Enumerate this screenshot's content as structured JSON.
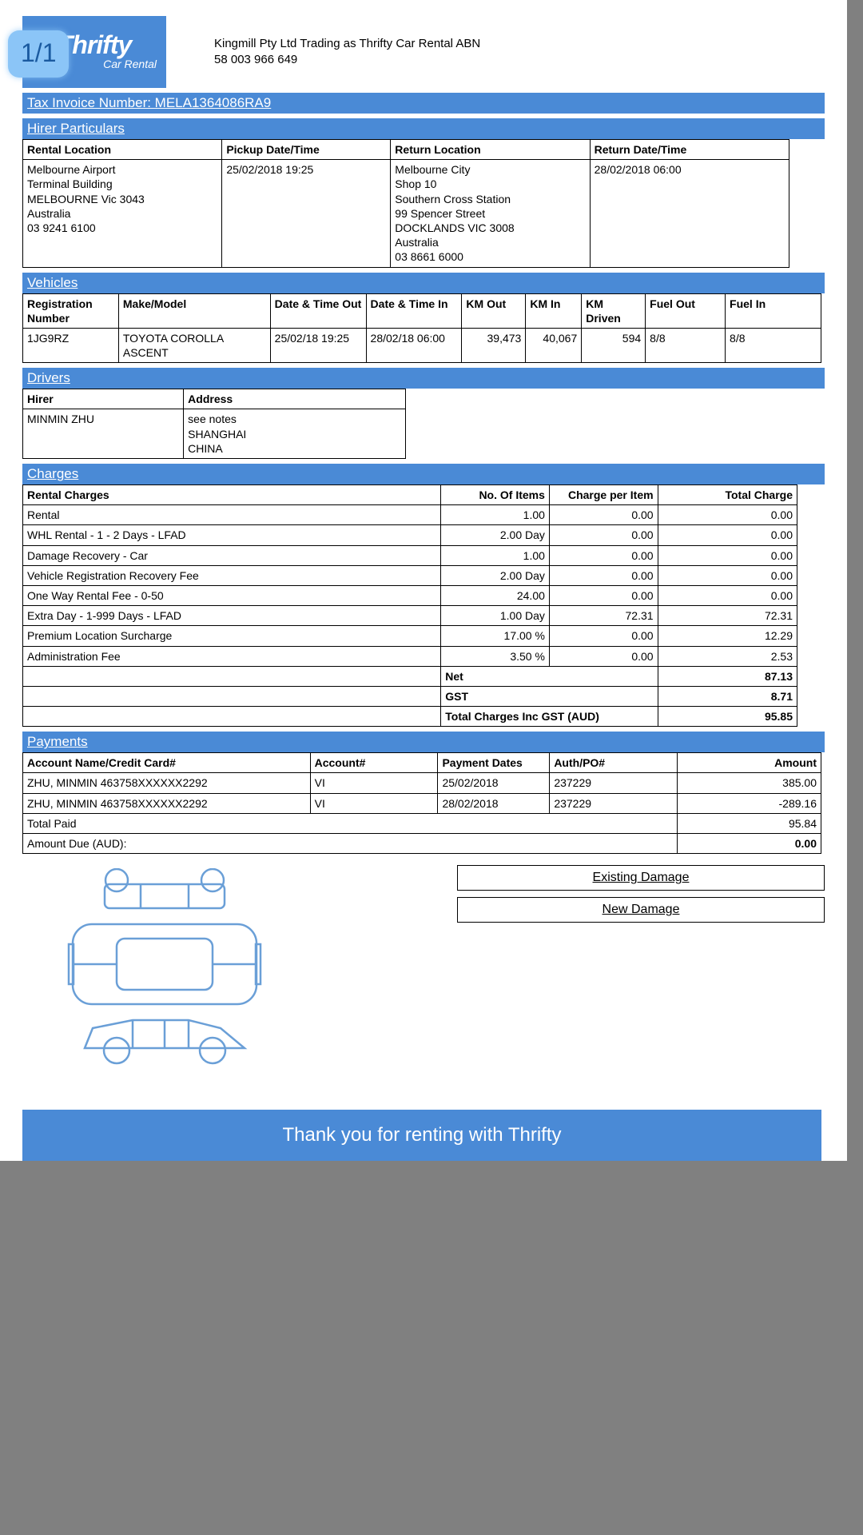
{
  "page_indicator": "1/1",
  "logo": {
    "name": "Thrifty",
    "sub": "Car Rental"
  },
  "company": {
    "line1": "Kingmill Pty Ltd Trading as Thrifty Car Rental ABN",
    "line2": "58 003 966 649"
  },
  "invoice_bar": "Tax Invoice Number:  MELA1364086RA9",
  "sections": {
    "hirer": "Hirer Particulars",
    "vehicles": "Vehicles",
    "drivers": "Drivers",
    "charges": "Charges",
    "payments": "Payments"
  },
  "hirer": {
    "headers": [
      "Rental Location",
      "Pickup Date/Time",
      "Return Location",
      "Return Date/Time"
    ],
    "rental_location": "Melbourne Airport\nTerminal Building\nMELBOURNE Vic 3043\nAustralia\n03 9241 6100",
    "pickup": "25/02/2018 19:25",
    "return_location": "Melbourne City\nShop 10\nSouthern Cross Station\n99 Spencer Street\nDOCKLANDS VIC 3008\nAustralia\n03 8661 6000",
    "return_dt": "28/02/2018 06:00"
  },
  "vehicles": {
    "headers": [
      "Registration Number",
      "Make/Model",
      "Date & Time Out",
      "Date & Time In",
      "KM Out",
      "KM In",
      "KM Driven",
      "Fuel Out",
      "Fuel In"
    ],
    "row": {
      "reg": "1JG9RZ",
      "model": "TOYOTA COROLLA ASCENT",
      "dt_out": "25/02/18 19:25",
      "dt_in": "28/02/18 06:00",
      "km_out": "39,473",
      "km_in": "40,067",
      "km_driven": "594",
      "fuel_out": "8/8",
      "fuel_in": "8/8"
    }
  },
  "drivers": {
    "headers": [
      "Hirer",
      "Address"
    ],
    "row": {
      "hirer": "MINMIN ZHU",
      "address": "see notes\nSHANGHAI\nCHINA"
    }
  },
  "charges": {
    "headers": [
      "Rental Charges",
      "No. Of Items",
      "Charge per Item",
      "Total Charge"
    ],
    "rows": [
      {
        "desc": "Rental",
        "items": "1.00",
        "per": "0.00",
        "total": "0.00"
      },
      {
        "desc": "WHL Rental - 1 - 2 Days - LFAD",
        "items": "2.00 Day",
        "per": "0.00",
        "total": "0.00"
      },
      {
        "desc": "Damage Recovery - Car",
        "items": "1.00",
        "per": "0.00",
        "total": "0.00"
      },
      {
        "desc": "Vehicle Registration Recovery Fee",
        "items": "2.00 Day",
        "per": "0.00",
        "total": "0.00"
      },
      {
        "desc": "One Way Rental Fee - 0-50",
        "items": "24.00",
        "per": "0.00",
        "total": "0.00"
      },
      {
        "desc": "Extra Day - 1-999 Days - LFAD",
        "items": "1.00 Day",
        "per": "72.31",
        "total": "72.31"
      },
      {
        "desc": "Premium Location Surcharge",
        "items": "17.00 %",
        "per": "0.00",
        "total": "12.29"
      },
      {
        "desc": "Administration Fee",
        "items": "3.50 %",
        "per": "0.00",
        "total": "2.53"
      }
    ],
    "net_label": "Net",
    "net": "87.13",
    "gst_label": "GST",
    "gst": "8.71",
    "total_label": "Total Charges Inc GST (AUD)",
    "total": "95.85"
  },
  "payments": {
    "headers": [
      "Account Name/Credit Card#",
      "Account#",
      "Payment Dates",
      "Auth/PO#",
      "Amount"
    ],
    "rows": [
      {
        "name": "ZHU, MINMIN 463758XXXXXX2292",
        "acct": "VI",
        "date": "25/02/2018",
        "auth": "237229",
        "amt": "385.00"
      },
      {
        "name": "ZHU, MINMIN 463758XXXXXX2292",
        "acct": "VI",
        "date": "28/02/2018",
        "auth": "237229",
        "amt": "-289.16"
      }
    ],
    "total_paid_label": "Total Paid",
    "total_paid": "95.84",
    "due_label": "Amount Due (AUD):",
    "due": "0.00"
  },
  "damage": {
    "existing": "Existing Damage",
    "new": "New Damage"
  },
  "footer": "Thank you for renting with Thrifty",
  "colors": {
    "blue": "#4a8ad6",
    "badge_bg": "#8bc5f7",
    "car_stroke": "#5a8fc7"
  }
}
